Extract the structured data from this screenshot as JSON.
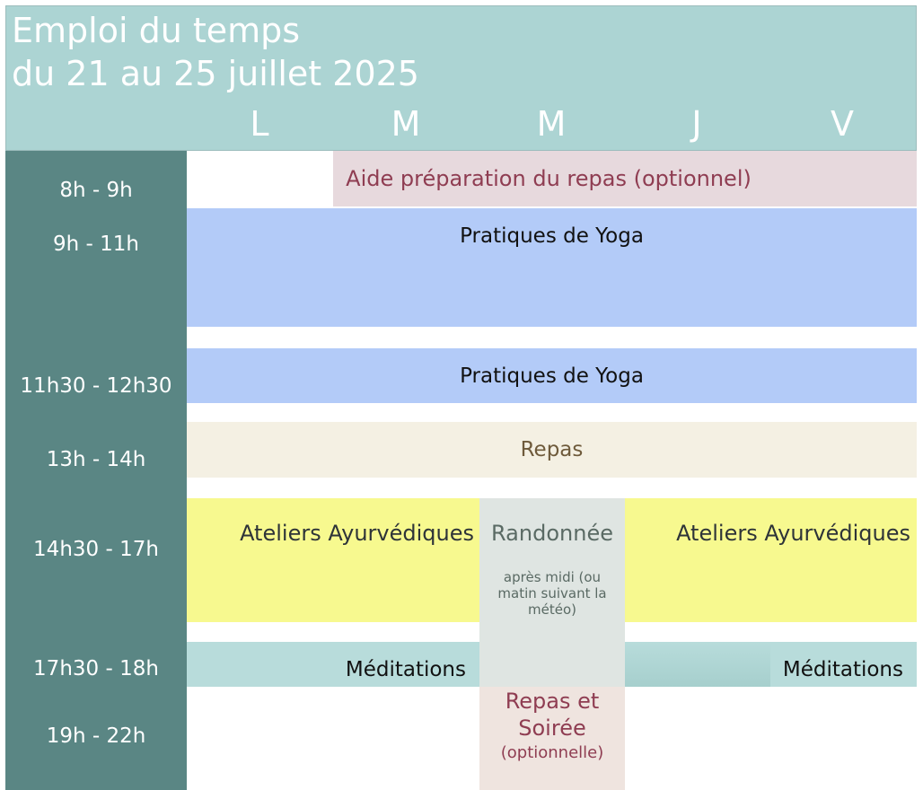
{
  "header": {
    "title_line1": "Emploi du temps",
    "title_line2": "du 21 au 25 juillet 2025",
    "days": [
      "L",
      "M",
      "M",
      "J",
      "V"
    ]
  },
  "times": [
    "8h - 9h",
    "9h - 11h",
    "11h30 - 12h30",
    "13h - 14h",
    "14h30 - 17h",
    "17h30 - 18h",
    "19h - 22h"
  ],
  "activities": {
    "prep": "Aide préparation du repas (optionnel)",
    "yoga1": "Pratiques de Yoga",
    "yoga2": "Pratiques de Yoga",
    "repas": "Repas",
    "ateliers_left": "Ateliers Ayurvédiques",
    "randonnee": "Randonnée",
    "randonnee_note": "après midi (ou matin suivant la météo)",
    "ateliers_right": "Ateliers Ayurvédiques",
    "meditations_left": "Méditations",
    "meditations_right": "Méditations",
    "soiree_title": "Repas et Soirée",
    "soiree_note": "(optionnelle)"
  },
  "colors": {
    "header": "#acd4d3",
    "time_column": "#5a8684",
    "prep": "#e7d9dd",
    "yoga": "#b3cbf8",
    "repas": "#f4f0e3",
    "ateliers": "#f7f98f",
    "randonnee": "#dfe5e2",
    "meditations": "#b8dcdb",
    "soiree": "#efe4df"
  }
}
